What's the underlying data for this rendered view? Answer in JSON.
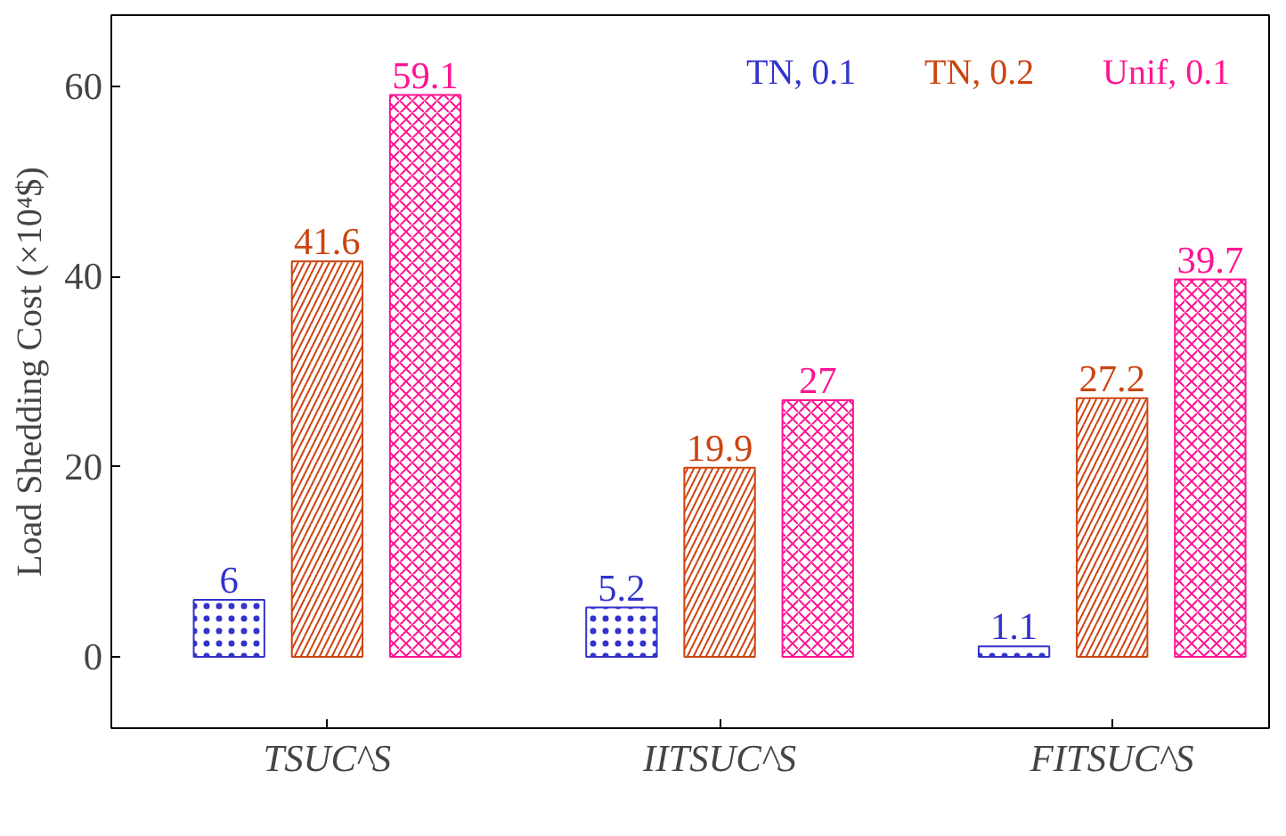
{
  "chart_data": {
    "type": "bar",
    "ylabel": "Load Shedding Cost (×10⁴$)",
    "categories": [
      "TSUC^S",
      "IITSUC^S",
      "FITSUC^S"
    ],
    "series": [
      {
        "name": "TN, 0.1",
        "color": "#3333cc",
        "values": [
          6,
          5.2,
          1.1
        ]
      },
      {
        "name": "TN, 0.2",
        "color": "#cc4411",
        "values": [
          41.6,
          19.9,
          27.2
        ]
      },
      {
        "name": "Unif, 0.1",
        "color": "#ff1493",
        "values": [
          59.1,
          27,
          39.7
        ]
      }
    ],
    "ylim": [
      -7.5,
      67.5
    ],
    "yticks": [
      0,
      20,
      40,
      60
    ],
    "data_labels": true,
    "grid": false,
    "legend": "top right"
  }
}
